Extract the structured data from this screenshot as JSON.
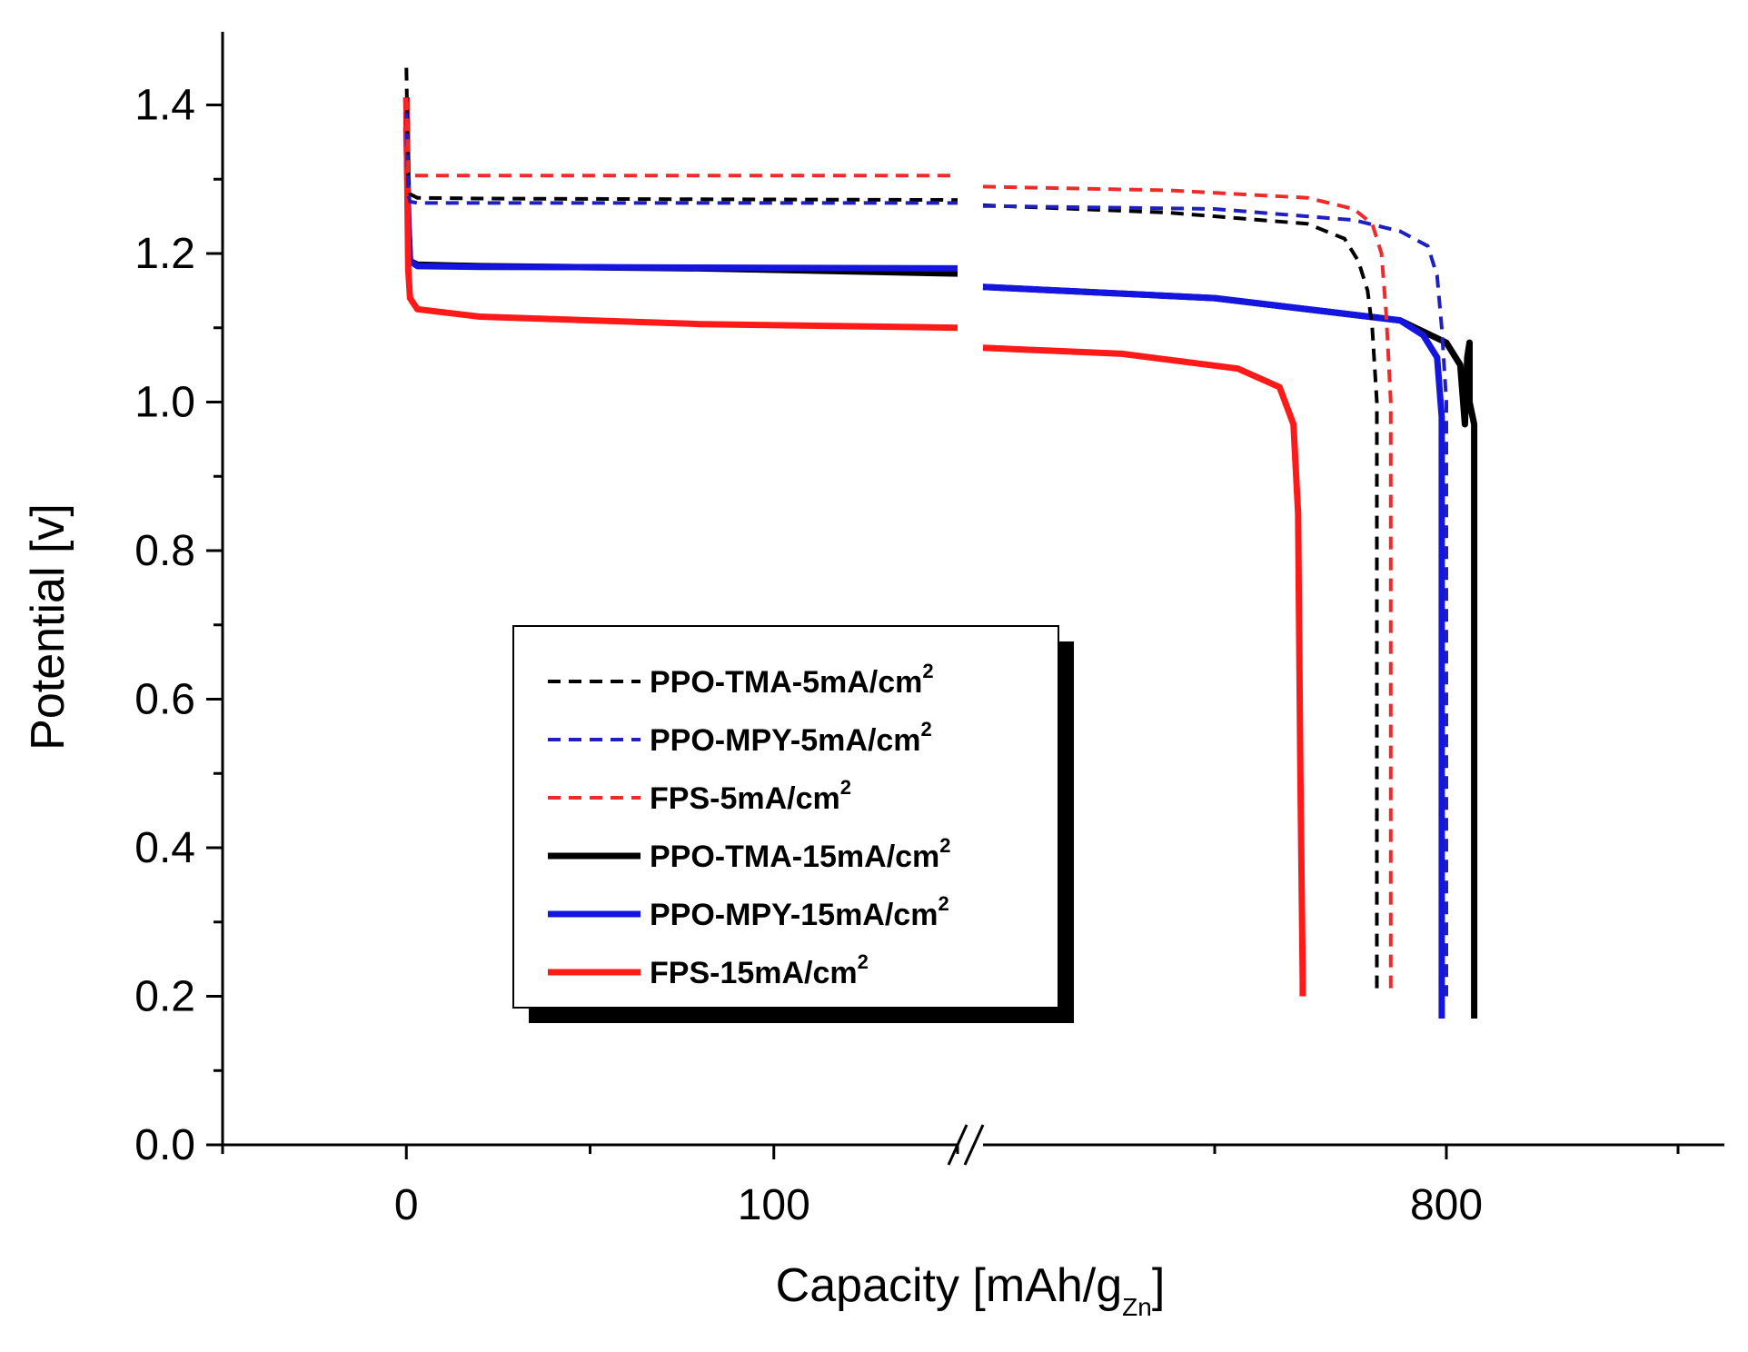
{
  "chart_data": {
    "type": "line",
    "title": "",
    "xlabel": "Capacity [mAh/g",
    "xlabel_sub": "Zn",
    "xlabel_end": "]",
    "ylabel": "Potential [v]",
    "ylim": [
      0.0,
      1.5
    ],
    "yticks": [
      "0.0",
      "0.2",
      "0.4",
      "0.6",
      "0.8",
      "1.0",
      "1.2",
      "1.4"
    ],
    "ytick_values": [
      0.0,
      0.2,
      0.4,
      0.6,
      0.8,
      1.0,
      1.2,
      1.4
    ],
    "xticks": [
      "0",
      "100",
      "800"
    ],
    "xtick_values": [
      0,
      100,
      800
    ],
    "x_axis_break": {
      "from": 150,
      "to": 700
    },
    "x_segments": [
      {
        "range": [
          -50,
          150
        ]
      },
      {
        "range": [
          700,
          860
        ]
      }
    ],
    "legend_position": "center-left",
    "series": [
      {
        "name": "PPO-TMA-5mA/cm",
        "name_sup": "2",
        "color": "#000000",
        "dash": true,
        "x": [
          0,
          0.5,
          1,
          3,
          20,
          80,
          150,
          700,
          740,
          770,
          778,
          781,
          783,
          784,
          785,
          785,
          785
        ],
        "y": [
          1.45,
          1.3,
          1.28,
          1.275,
          1.274,
          1.273,
          1.272,
          1.265,
          1.255,
          1.24,
          1.22,
          1.19,
          1.15,
          1.1,
          1.0,
          0.5,
          0.2
        ]
      },
      {
        "name": "PPO-MPY-5mA/cm",
        "name_sup": "2",
        "color": "#1f1fbf",
        "dash": true,
        "x": [
          0,
          0.5,
          1,
          3,
          20,
          80,
          150,
          700,
          750,
          780,
          790,
          796,
          798,
          799,
          800,
          800,
          800
        ],
        "y": [
          1.39,
          1.28,
          1.27,
          1.268,
          1.268,
          1.268,
          1.268,
          1.264,
          1.26,
          1.245,
          1.23,
          1.21,
          1.17,
          1.1,
          1.0,
          0.5,
          0.2
        ]
      },
      {
        "name": "FPS-5mA/cm",
        "name_sup": "2",
        "color": "#ee2a2a",
        "dash": true,
        "x": [
          0,
          0.5,
          1,
          3,
          20,
          80,
          150,
          700,
          740,
          770,
          780,
          784,
          786,
          787,
          788,
          788,
          788
        ],
        "y": [
          1.41,
          1.31,
          1.305,
          1.305,
          1.305,
          1.305,
          1.305,
          1.29,
          1.285,
          1.275,
          1.26,
          1.24,
          1.2,
          1.12,
          1.0,
          0.5,
          0.2
        ]
      },
      {
        "name": "PPO-TMA-15mA/cm",
        "name_sup": "2",
        "color": "#000000",
        "dash": false,
        "x": [
          0,
          0.5,
          1,
          3,
          20,
          80,
          150,
          700,
          750,
          790,
          800,
          803,
          804,
          804.5,
          805,
          805,
          806,
          806,
          806
        ],
        "y": [
          1.41,
          1.24,
          1.19,
          1.185,
          1.183,
          1.18,
          1.173,
          1.155,
          1.14,
          1.11,
          1.08,
          1.05,
          0.97,
          1.06,
          1.08,
          1.0,
          0.97,
          0.5,
          0.17
        ]
      },
      {
        "name": "PPO-MPY-15mA/cm",
        "name_sup": "2",
        "color": "#1515e0",
        "dash": false,
        "x": [
          0,
          0.5,
          1,
          3,
          20,
          80,
          150,
          700,
          750,
          790,
          795,
          798,
          799,
          799,
          799
        ],
        "y": [
          1.37,
          1.25,
          1.19,
          1.183,
          1.182,
          1.181,
          1.18,
          1.155,
          1.14,
          1.11,
          1.09,
          1.06,
          0.98,
          0.5,
          0.17
        ]
      },
      {
        "name": "FPS-15mA/cm",
        "name_sup": "2",
        "color": "#ff1a1a",
        "dash": false,
        "x": [
          0,
          0.5,
          1,
          3,
          20,
          80,
          150,
          700,
          730,
          755,
          764,
          767,
          768,
          768.5,
          769,
          769
        ],
        "y": [
          1.41,
          1.18,
          1.14,
          1.125,
          1.115,
          1.105,
          1.1,
          1.073,
          1.065,
          1.045,
          1.02,
          0.97,
          0.85,
          0.5,
          0.22,
          0.2
        ]
      }
    ]
  }
}
